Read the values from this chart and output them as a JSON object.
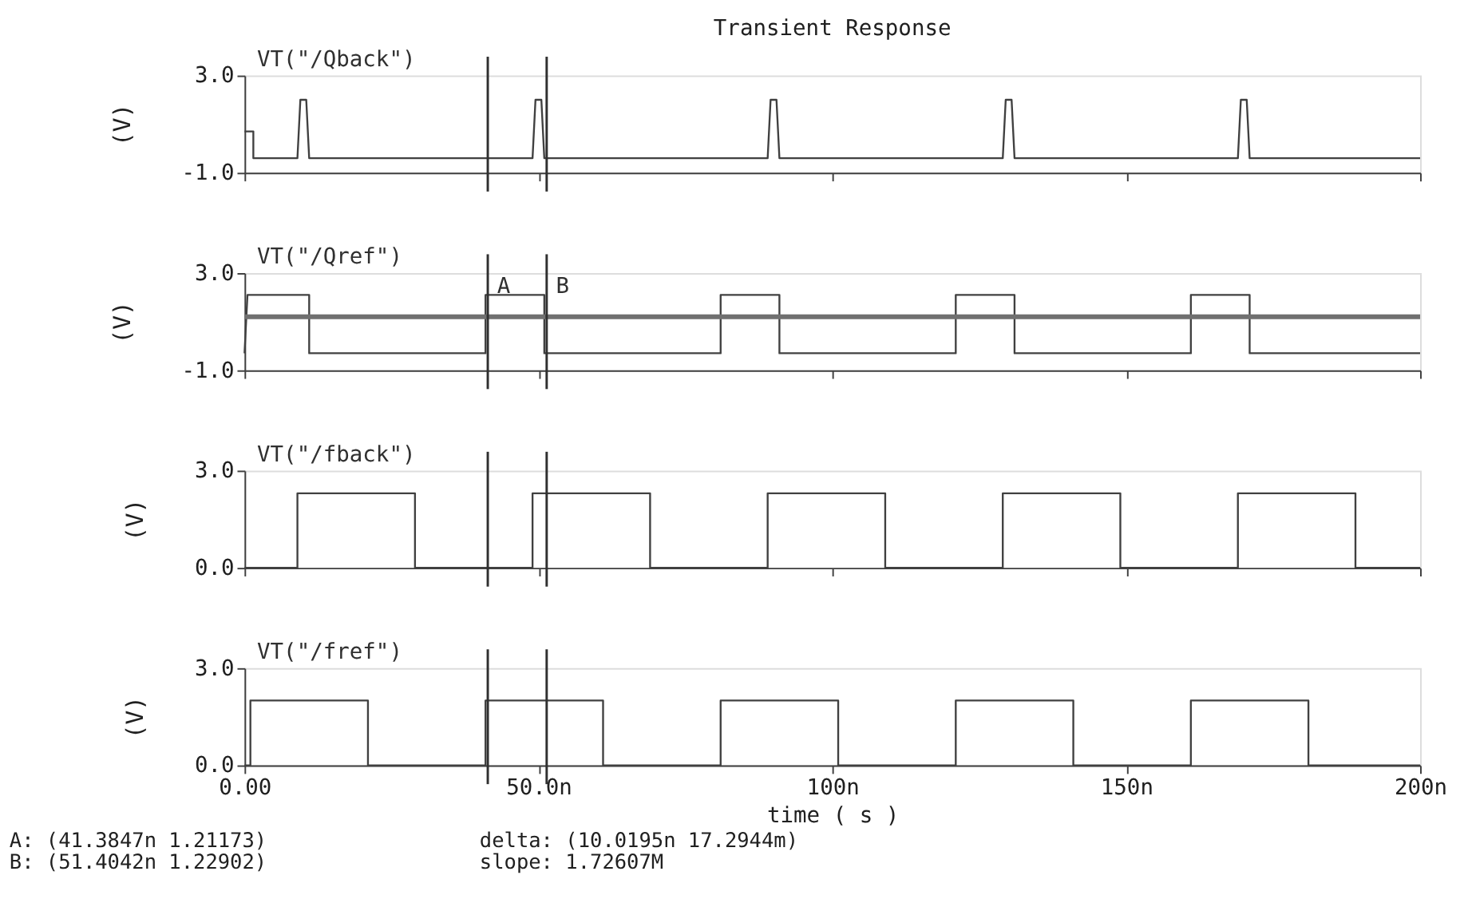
{
  "chart_data": [
    {
      "type": "line",
      "title": "Transient Response",
      "ylabel": "(V)",
      "xlim": [
        0,
        200
      ],
      "ylim": [
        -1,
        3
      ],
      "xticks": [
        {
          "value": 0,
          "label": null
        },
        {
          "value": 50,
          "label": null
        },
        {
          "value": 100,
          "label": null
        },
        {
          "value": 150,
          "label": null
        },
        {
          "value": 200,
          "label": null
        }
      ],
      "yticks": [
        {
          "value": -1,
          "label": "-1.0"
        },
        {
          "value": 3,
          "label": "3.0"
        }
      ],
      "tick_labels": "y",
      "grid": false,
      "legend": false,
      "series": [
        {
          "name": "VT(\"/Qback\")",
          "color": "#404040",
          "x": [
            0,
            1.5,
            1.5,
            9,
            9.5,
            10.5,
            11,
            49,
            49.5,
            50.5,
            51,
            89,
            89.5,
            90.5,
            91,
            129,
            129.5,
            130.5,
            131,
            169,
            169.5,
            170.5,
            171,
            200
          ],
          "values": [
            0.7,
            0.7,
            -0.4,
            -0.4,
            2.0,
            2.0,
            -0.4,
            -0.4,
            2.0,
            2.0,
            -0.4,
            -0.4,
            2.0,
            2.0,
            -0.4,
            -0.4,
            2.0,
            2.0,
            -0.4,
            -0.4,
            2.0,
            2.0,
            -0.4,
            -0.4
          ]
        }
      ],
      "ref_lines": [
        {
          "axis": "x",
          "value": 41.3847,
          "color": "#303030"
        },
        {
          "axis": "x",
          "value": 51.4042,
          "color": "#303030"
        }
      ]
    },
    {
      "type": "line",
      "ylabel": "(V)",
      "xlim": [
        0,
        200
      ],
      "ylim": [
        -1,
        3
      ],
      "xticks": [
        {
          "value": 0,
          "label": null
        },
        {
          "value": 50,
          "label": null
        },
        {
          "value": 100,
          "label": null
        },
        {
          "value": 150,
          "label": null
        },
        {
          "value": 200,
          "label": null
        }
      ],
      "yticks": [
        {
          "value": -1,
          "label": "-1.0"
        },
        {
          "value": 3,
          "label": "3.0"
        }
      ],
      "tick_labels": "y",
      "grid": false,
      "legend": false,
      "series": [
        {
          "name": "VT(\"/Qref\")",
          "color": "#404040",
          "x": [
            0,
            0.5,
            11,
            11,
            41,
            41,
            51,
            51,
            81,
            81,
            91,
            91,
            121,
            121,
            131,
            131,
            161,
            161,
            171,
            171,
            200
          ],
          "values": [
            -0.3,
            2.1,
            2.1,
            -0.3,
            -0.3,
            2.1,
            2.1,
            -0.3,
            -0.3,
            2.1,
            2.1,
            -0.3,
            -0.3,
            2.1,
            2.1,
            -0.3,
            -0.3,
            2.1,
            2.1,
            -0.3,
            -0.3
          ]
        }
      ],
      "ref_lines": [
        {
          "axis": "y",
          "value": 1.2,
          "color": "#707070"
        },
        {
          "axis": "x",
          "value": 41.3847,
          "label": "A",
          "color": "#303030"
        },
        {
          "axis": "x",
          "value": 51.4042,
          "label": "B",
          "color": "#303030"
        }
      ]
    },
    {
      "type": "line",
      "ylabel": "(V)",
      "xlim": [
        0,
        200
      ],
      "ylim": [
        0,
        3
      ],
      "xticks": [
        {
          "value": 0,
          "label": null
        },
        {
          "value": 50,
          "label": null
        },
        {
          "value": 100,
          "label": null
        },
        {
          "value": 150,
          "label": null
        },
        {
          "value": 200,
          "label": null
        }
      ],
      "yticks": [
        {
          "value": 0,
          "label": "0.0"
        },
        {
          "value": 3,
          "label": "3.0"
        }
      ],
      "tick_labels": "y",
      "grid": false,
      "legend": false,
      "series": [
        {
          "name": "VT(\"/fback\")",
          "color": "#404040",
          "x": [
            0,
            9,
            9,
            29,
            29,
            49,
            49,
            69,
            69,
            89,
            89,
            109,
            109,
            129,
            129,
            149,
            149,
            169,
            169,
            189,
            189,
            200
          ],
          "values": [
            0,
            0,
            2.3,
            2.3,
            0,
            0,
            2.3,
            2.3,
            0,
            0,
            2.3,
            2.3,
            0,
            0,
            2.3,
            2.3,
            0,
            0,
            2.3,
            2.3,
            0,
            0
          ]
        }
      ],
      "ref_lines": [
        {
          "axis": "x",
          "value": 41.3847,
          "color": "#303030"
        },
        {
          "axis": "x",
          "value": 51.4042,
          "color": "#303030"
        }
      ]
    },
    {
      "type": "line",
      "xlabel": "time ( s )",
      "ylabel": "(V)",
      "xlim": [
        0,
        200
      ],
      "ylim": [
        0,
        3
      ],
      "xticks": [
        {
          "value": 0,
          "label": "0.00"
        },
        {
          "value": 50,
          "label": "50.0n"
        },
        {
          "value": 100,
          "label": "100n"
        },
        {
          "value": 150,
          "label": "150n"
        },
        {
          "value": 200,
          "label": "200n"
        }
      ],
      "yticks": [
        {
          "value": 0,
          "label": "0.0"
        },
        {
          "value": 3,
          "label": "3.0"
        }
      ],
      "grid": false,
      "legend": false,
      "series": [
        {
          "name": "VT(\"/fref\")",
          "color": "#404040",
          "x": [
            0,
            1,
            1,
            21,
            21,
            41,
            41,
            61,
            61,
            81,
            81,
            101,
            101,
            121,
            121,
            141,
            141,
            161,
            161,
            181,
            181,
            200
          ],
          "values": [
            0,
            0,
            2.0,
            2.0,
            0,
            0,
            2.0,
            2.0,
            0,
            0,
            2.0,
            2.0,
            0,
            0,
            2.0,
            2.0,
            0,
            0,
            2.0,
            2.0,
            0,
            0
          ]
        }
      ],
      "ref_lines": [
        {
          "axis": "x",
          "value": 41.3847,
          "color": "#303030"
        },
        {
          "axis": "x",
          "value": 51.4042,
          "color": "#303030"
        }
      ],
      "annotations": [
        "A: (41.3847n 1.21173)",
        "B: (51.4042n 1.22902)",
        "delta: (10.0195n 17.2944m)",
        "slope: 1.72607M"
      ]
    }
  ]
}
